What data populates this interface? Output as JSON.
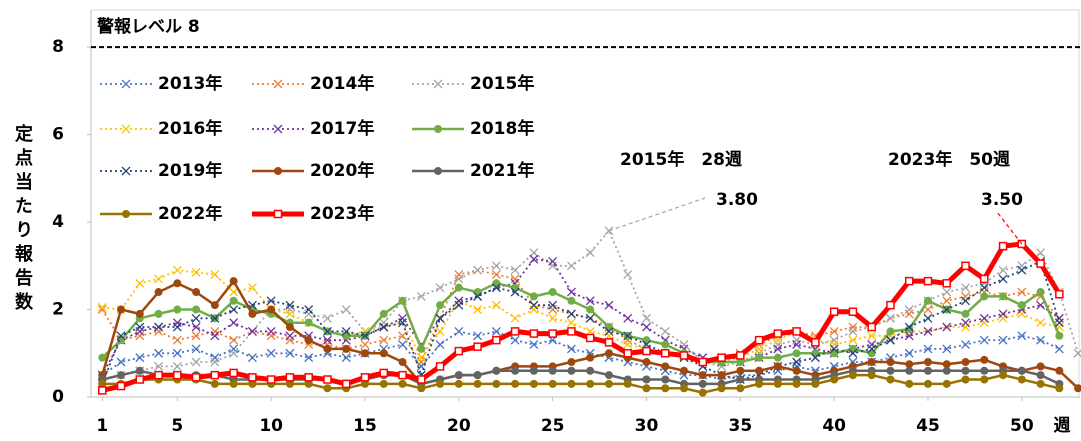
{
  "chart_data": {
    "type": "line",
    "y_label": "定点当たり報告数",
    "x_label": "週",
    "x": [
      1,
      2,
      3,
      4,
      5,
      6,
      7,
      8,
      9,
      10,
      11,
      12,
      13,
      14,
      15,
      16,
      17,
      18,
      19,
      20,
      21,
      22,
      23,
      24,
      25,
      26,
      27,
      28,
      29,
      30,
      31,
      32,
      33,
      34,
      35,
      36,
      37,
      38,
      39,
      40,
      41,
      42,
      43,
      44,
      45,
      46,
      47,
      48,
      49,
      50,
      51,
      52,
      53
    ],
    "xlim": [
      0.4,
      53.1
    ],
    "xticks": [
      1,
      5,
      10,
      15,
      20,
      25,
      30,
      35,
      40,
      45,
      50
    ],
    "ylim": [
      0,
      8.85
    ],
    "yticks": [
      0,
      2,
      4,
      6,
      8
    ],
    "alert_level": {
      "value": 8,
      "label": "警報レベル 8"
    },
    "annotations": [
      {
        "text": "2015年　28週",
        "value_label": "3.80",
        "x": 28,
        "y": 3.8,
        "color": "#a5a5a5"
      },
      {
        "text": "2023年　50週",
        "value_label": "3.50",
        "x": 50,
        "y": 3.5,
        "color": "#ff0000"
      }
    ],
    "series": [
      {
        "name": "2013年",
        "color": "#4472c4",
        "marker": "x",
        "line_style": "dotted",
        "values": [
          0.5,
          0.8,
          0.9,
          1.0,
          1.0,
          1.1,
          0.9,
          1.1,
          0.9,
          1.0,
          1.0,
          0.9,
          1.0,
          0.9,
          1.0,
          1.1,
          1.2,
          0.7,
          1.2,
          1.5,
          1.4,
          1.5,
          1.3,
          1.2,
          1.3,
          1.1,
          1.0,
          0.9,
          0.8,
          0.7,
          0.6,
          0.5,
          0.5,
          0.4,
          0.5,
          0.5,
          0.6,
          0.7,
          0.6,
          0.7,
          0.8,
          0.8,
          0.9,
          1.0,
          1.1,
          1.1,
          1.2,
          1.3,
          1.3,
          1.4,
          1.3,
          1.1,
          null
        ]
      },
      {
        "name": "2014年",
        "color": "#ed7d31",
        "marker": "x",
        "line_style": "dotted",
        "values": [
          2.0,
          1.3,
          1.4,
          1.5,
          1.3,
          1.4,
          1.5,
          1.3,
          1.5,
          1.4,
          1.3,
          1.2,
          1.2,
          1.1,
          1.2,
          1.3,
          1.4,
          0.8,
          1.8,
          2.8,
          2.9,
          2.8,
          2.7,
          2.1,
          2.0,
          1.9,
          1.8,
          1.6,
          1.3,
          1.1,
          1.0,
          0.9,
          0.8,
          0.9,
          1.0,
          1.2,
          1.4,
          1.5,
          1.4,
          1.5,
          1.6,
          1.6,
          1.8,
          1.9,
          2.0,
          2.2,
          2.3,
          2.4,
          2.3,
          2.4,
          2.3,
          1.8,
          null
        ]
      },
      {
        "name": "2015年",
        "color": "#a5a5a5",
        "marker": "x",
        "line_style": "dotted",
        "values": [
          0.4,
          0.5,
          0.6,
          0.7,
          0.7,
          0.8,
          0.8,
          1.0,
          1.5,
          2.0,
          2.0,
          1.9,
          1.8,
          2.0,
          1.5,
          1.7,
          2.2,
          2.3,
          2.5,
          2.7,
          2.9,
          3.0,
          2.9,
          3.3,
          3.0,
          3.0,
          3.3,
          3.8,
          2.8,
          1.8,
          1.5,
          1.2,
          0.8,
          0.7,
          0.8,
          1.0,
          1.2,
          1.3,
          1.2,
          1.3,
          1.5,
          1.6,
          1.8,
          2.0,
          2.2,
          2.4,
          2.5,
          2.6,
          2.9,
          3.0,
          3.3,
          2.4,
          1.0
        ]
      },
      {
        "name": "2016年",
        "color": "#ffc000",
        "marker": "x",
        "line_style": "dotted",
        "values": [
          2.05,
          2.0,
          2.6,
          2.7,
          2.9,
          2.85,
          2.8,
          2.4,
          2.5,
          2.0,
          1.9,
          1.7,
          1.5,
          1.4,
          1.5,
          1.6,
          1.7,
          0.9,
          1.5,
          2.2,
          2.0,
          2.1,
          1.8,
          2.0,
          1.8,
          1.7,
          1.5,
          1.4,
          1.2,
          1.1,
          1.0,
          0.9,
          0.8,
          0.8,
          0.9,
          1.1,
          1.3,
          1.5,
          1.3,
          1.2,
          1.3,
          1.4,
          1.4,
          1.5,
          1.5,
          1.6,
          1.6,
          1.7,
          1.8,
          1.9,
          1.7,
          1.6,
          null
        ]
      },
      {
        "name": "2017年",
        "color": "#7030a0",
        "marker": "x",
        "line_style": "dotted",
        "values": [
          0.5,
          1.3,
          1.5,
          1.6,
          1.7,
          1.6,
          1.4,
          1.7,
          1.5,
          1.5,
          1.4,
          1.4,
          1.3,
          1.3,
          1.4,
          1.6,
          1.8,
          1.2,
          1.8,
          2.2,
          2.3,
          2.5,
          2.6,
          3.15,
          3.1,
          2.4,
          2.2,
          2.1,
          1.8,
          1.6,
          1.3,
          1.1,
          0.9,
          0.8,
          0.8,
          0.9,
          1.1,
          1.2,
          1.1,
          1.0,
          1.1,
          1.2,
          1.3,
          1.4,
          1.5,
          1.6,
          1.7,
          1.8,
          1.9,
          2.0,
          2.1,
          1.8,
          null
        ]
      },
      {
        "name": "2018年",
        "color": "#70ad47",
        "marker": "circle",
        "line_style": "solid",
        "values": [
          0.9,
          1.3,
          1.8,
          1.9,
          2.0,
          2.0,
          1.8,
          2.2,
          2.0,
          1.9,
          1.7,
          1.7,
          1.5,
          1.4,
          1.4,
          1.9,
          2.2,
          1.1,
          2.1,
          2.5,
          2.4,
          2.6,
          2.5,
          2.3,
          2.4,
          2.2,
          2.0,
          1.6,
          1.4,
          1.3,
          1.2,
          1.0,
          0.8,
          0.8,
          0.8,
          0.9,
          0.9,
          1.0,
          1.0,
          1.0,
          1.1,
          1.0,
          1.5,
          1.55,
          2.2,
          2.0,
          1.9,
          2.3,
          2.3,
          2.1,
          2.4,
          1.4,
          null
        ]
      },
      {
        "name": "2019年",
        "color": "#264478",
        "marker": "x",
        "line_style": "dotted",
        "values": [
          0.3,
          1.4,
          1.6,
          1.6,
          1.6,
          1.8,
          1.8,
          2.0,
          2.1,
          2.2,
          2.1,
          2.0,
          1.5,
          1.5,
          1.4,
          1.6,
          1.7,
          0.5,
          1.8,
          2.1,
          2.3,
          2.5,
          2.4,
          2.1,
          2.1,
          1.9,
          1.8,
          1.5,
          1.4,
          1.2,
          1.0,
          0.9,
          0.7,
          0.5,
          0.4,
          0.5,
          0.7,
          0.8,
          0.9,
          1.1,
          1.0,
          1.1,
          1.3,
          1.6,
          1.8,
          2.0,
          2.2,
          2.5,
          2.7,
          2.9,
          3.1,
          1.7,
          null
        ]
      },
      {
        "name": "2020年",
        "color": "#9e480e",
        "marker": "circle",
        "line_style": "solid",
        "values": [
          0.5,
          2.0,
          1.9,
          2.4,
          2.6,
          2.4,
          2.1,
          2.65,
          1.9,
          2.0,
          1.6,
          1.3,
          1.1,
          1.1,
          1.0,
          1.0,
          0.8,
          0.3,
          0.4,
          0.5,
          0.5,
          0.6,
          0.7,
          0.7,
          0.7,
          0.8,
          0.9,
          1.0,
          0.9,
          0.8,
          0.7,
          0.6,
          0.5,
          0.5,
          0.6,
          0.6,
          0.7,
          0.6,
          0.5,
          0.6,
          0.7,
          0.8,
          0.8,
          0.75,
          0.8,
          0.75,
          0.8,
          0.85,
          0.7,
          0.6,
          0.7,
          0.6,
          0.2
        ]
      },
      {
        "name": "2021年",
        "color": "#636363",
        "marker": "circle",
        "line_style": "solid",
        "values": [
          0.4,
          0.5,
          0.6,
          0.5,
          0.5,
          0.5,
          0.5,
          0.4,
          0.4,
          0.4,
          0.4,
          0.4,
          0.4,
          0.3,
          0.4,
          0.5,
          0.5,
          0.3,
          0.4,
          0.5,
          0.5,
          0.6,
          0.6,
          0.6,
          0.6,
          0.6,
          0.6,
          0.5,
          0.4,
          0.4,
          0.4,
          0.3,
          0.3,
          0.3,
          0.4,
          0.4,
          0.4,
          0.4,
          0.4,
          0.5,
          0.6,
          0.6,
          0.6,
          0.6,
          0.6,
          0.6,
          0.6,
          0.6,
          0.6,
          0.6,
          0.5,
          0.3,
          null
        ]
      },
      {
        "name": "2022年",
        "color": "#997300",
        "marker": "circle",
        "line_style": "solid",
        "values": [
          0.3,
          0.3,
          0.4,
          0.4,
          0.4,
          0.4,
          0.3,
          0.3,
          0.3,
          0.3,
          0.3,
          0.3,
          0.2,
          0.2,
          0.3,
          0.3,
          0.3,
          0.2,
          0.3,
          0.3,
          0.3,
          0.3,
          0.3,
          0.3,
          0.3,
          0.3,
          0.3,
          0.3,
          0.3,
          0.2,
          0.2,
          0.2,
          0.1,
          0.2,
          0.2,
          0.3,
          0.3,
          0.3,
          0.3,
          0.4,
          0.5,
          0.5,
          0.4,
          0.3,
          0.3,
          0.3,
          0.4,
          0.4,
          0.5,
          0.4,
          0.3,
          0.2,
          null
        ]
      },
      {
        "name": "2023年",
        "color": "#ff0000",
        "marker": "square",
        "line_style": "thick",
        "values": [
          0.15,
          0.25,
          0.4,
          0.5,
          0.5,
          0.45,
          0.5,
          0.55,
          0.45,
          0.4,
          0.45,
          0.45,
          0.4,
          0.3,
          0.45,
          0.55,
          0.5,
          0.4,
          0.7,
          1.05,
          1.15,
          1.3,
          1.5,
          1.45,
          1.45,
          1.5,
          1.35,
          1.25,
          1.0,
          1.05,
          1.0,
          0.95,
          0.8,
          0.9,
          0.95,
          1.3,
          1.45,
          1.5,
          1.25,
          1.95,
          1.95,
          1.6,
          2.1,
          2.65,
          2.65,
          2.6,
          3.0,
          2.7,
          3.45,
          3.5,
          3.05,
          2.35,
          null
        ]
      }
    ]
  }
}
